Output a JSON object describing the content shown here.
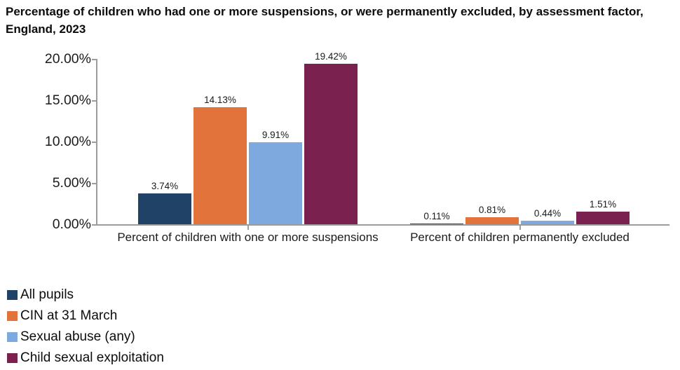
{
  "title": "Percentage of children who had one or more suspensions, or were permanently excluded, by assessment factor, England, 2023",
  "colors": {
    "axis": "#9c9c9c",
    "text": "#0b0c0c",
    "background": "#ffffff"
  },
  "chart_data": {
    "type": "bar",
    "title": "Percentage of children who had one or more suspensions, or were permanently excluded, by assessment factor, England, 2023",
    "categories": [
      "Percent of children with one or more suspensions",
      "Percent of children permanently excluded"
    ],
    "series": [
      {
        "name": "All pupils",
        "color": "#1f4266",
        "values": [
          3.74,
          0.11
        ],
        "value_labels": [
          "3.74%",
          "0.11%"
        ]
      },
      {
        "name": "CIN at 31 March",
        "color": "#e2733b",
        "values": [
          14.13,
          0.81
        ],
        "value_labels": [
          "14.13%",
          "0.81%"
        ]
      },
      {
        "name": "Sexual abuse (any)",
        "color": "#7da9de",
        "values": [
          9.91,
          0.44
        ],
        "value_labels": [
          "9.91%",
          "0.44%"
        ]
      },
      {
        "name": "Child sexual exploitation",
        "color": "#7a2150",
        "values": [
          19.42,
          1.51
        ],
        "value_labels": [
          "19.42%",
          "1.51%"
        ]
      }
    ],
    "y_axis": {
      "tick_labels": [
        "20.00%",
        "15.00%",
        "10.00%",
        "5.00%",
        "0.00%"
      ],
      "tick_values": [
        20,
        15,
        10,
        5,
        0
      ]
    },
    "ylim": [
      0,
      20
    ],
    "xlabel": "",
    "ylabel": "",
    "grid": false,
    "legend_position": "bottom-left",
    "bar_value_labels_shown": true
  }
}
